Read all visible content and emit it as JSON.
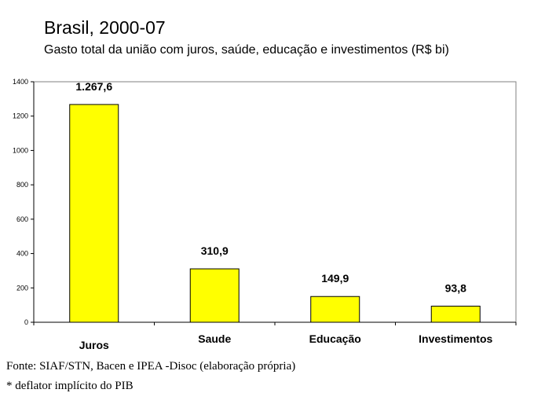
{
  "chart_data": {
    "type": "bar",
    "title": "Brasil, 2000-07",
    "subtitle": "Gasto total da união com juros, saúde, educação e investimentos (R$ bi)",
    "categories": [
      "Juros",
      "Saude",
      "Educação",
      "Investimentos"
    ],
    "values": [
      1267.6,
      310.9,
      149.9,
      93.8
    ],
    "data_labels": [
      "1.267,6",
      "310,9",
      "149,9",
      "93,8"
    ],
    "ylim": [
      0,
      1400
    ],
    "yticks": [
      0,
      200,
      400,
      600,
      800,
      1000,
      1200,
      1400
    ],
    "xlabel": "",
    "ylabel": "",
    "grid": false,
    "bar_color": "#ffff00"
  },
  "footnotes": {
    "source": "Fonte: SIAF/STN, Bacen e IPEA -Disoc (elaboração própria)",
    "deflator": "* deflator implícito do PIB"
  }
}
